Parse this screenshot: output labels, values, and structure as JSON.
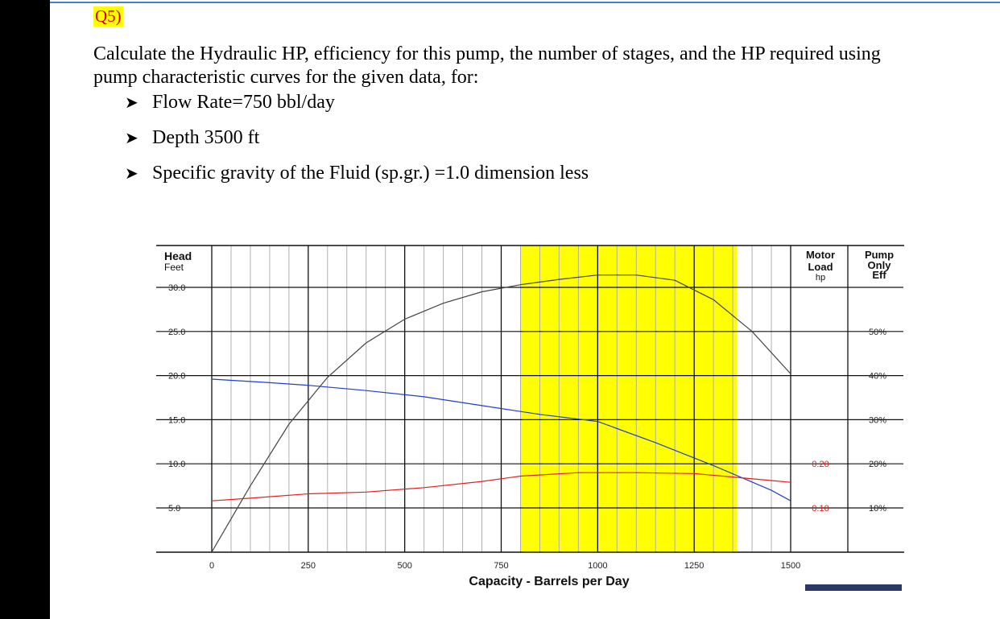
{
  "question": {
    "label": "Q5)",
    "text": "Calculate the Hydraulic HP, efficiency for this pump, the number of stages, and the HP required using pump characteristic curves for the given data, for:",
    "bullets": [
      "Flow Rate=750 bbl/day",
      "Depth 3500 ft",
      "Specific gravity of the Fluid (sp.gr.) =1.0 dimension less"
    ]
  },
  "chart_data": {
    "type": "line",
    "xlabel": "Capacity - Barrels per Day",
    "xlim": [
      0,
      1500
    ],
    "x_ticks": [
      "0",
      "250",
      "500",
      "750",
      "1000",
      "1250",
      "1500"
    ],
    "y_title": "Head",
    "y_unit": "Feet",
    "ylim": [
      0,
      30
    ],
    "y_ticks": [
      "30.0",
      "25.0",
      "20.0",
      "15.0",
      "10.0",
      "5.0"
    ],
    "motor_title": [
      "Motor",
      "Load",
      "hp"
    ],
    "motor_ticks": [
      "0.20",
      "0.10"
    ],
    "eff_title": [
      "Pump",
      "Only",
      "Eff"
    ],
    "eff_ticks": [
      "50%",
      "40%",
      "30%",
      "20%",
      "10%"
    ],
    "grid": true,
    "recommended_range": {
      "start": 800,
      "end": 1360,
      "color": "#ffff00"
    },
    "series": [
      {
        "role": "head",
        "color": "#1f3fd0",
        "x": [
          0,
          150,
          250,
          400,
          550,
          700,
          850,
          1000,
          1150,
          1300,
          1450,
          1500
        ],
        "y": [
          19.6,
          19.2,
          18.9,
          18.3,
          17.6,
          16.6,
          15.6,
          14.8,
          12.4,
          9.8,
          7.0,
          5.8
        ]
      },
      {
        "role": "efficiency",
        "color": "#444444",
        "x": [
          0,
          100,
          200,
          300,
          400,
          500,
          600,
          700,
          800,
          900,
          1000,
          1100,
          1200,
          1300,
          1400,
          1500
        ],
        "y": [
          0,
          7.5,
          14.5,
          19.8,
          23.7,
          26.4,
          28.2,
          29.5,
          30.3,
          30.9,
          31.4,
          31.4,
          30.8,
          28.6,
          25.0,
          20.2
        ]
      },
      {
        "role": "motor-load",
        "color": "#e02020",
        "x": [
          0,
          100,
          250,
          400,
          550,
          700,
          800,
          950,
          1100,
          1250,
          1350,
          1450,
          1500
        ],
        "y": [
          5.8,
          6.1,
          6.6,
          6.8,
          7.3,
          8.0,
          8.6,
          9.0,
          9.0,
          8.9,
          8.5,
          8.1,
          7.9
        ]
      }
    ]
  }
}
